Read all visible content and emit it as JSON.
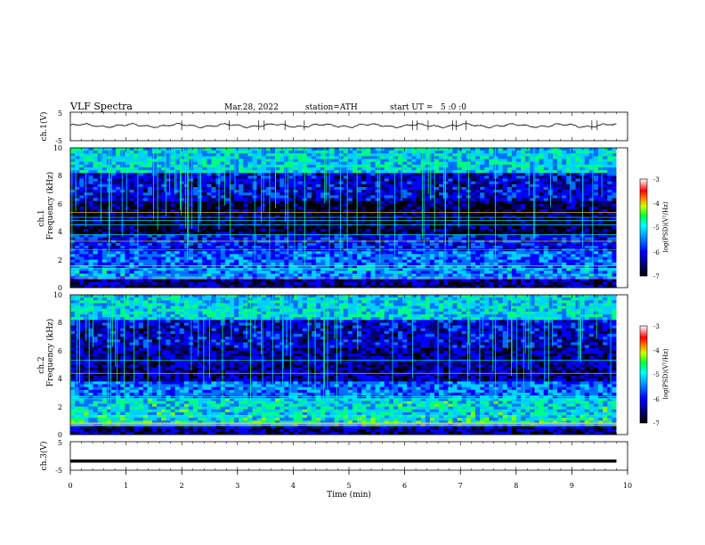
{
  "header": {
    "title": "VLF Spectra",
    "date": "Mar.28, 2022",
    "station": "station=ATH",
    "start_ut": "start UT =   5 :0 :0"
  },
  "chart_data": {
    "type": "heatmap",
    "xlabel": "Time (min)",
    "xlim": [
      0,
      10
    ],
    "x_ticks": [
      "0",
      "1",
      "2",
      "3",
      "4",
      "5",
      "6",
      "7",
      "8",
      "9",
      "10"
    ],
    "data_end_min": 9.8,
    "panels": [
      {
        "name": "ch1-waveform",
        "type": "line",
        "ylabel": "ch.1(V)",
        "ylim": [
          -5,
          5
        ],
        "y_ticks": [
          "5",
          "-5"
        ],
        "baseline_V": 0.3,
        "amplitude_V": 0.9
      },
      {
        "name": "ch1-spectrogram",
        "type": "heatmap",
        "ylabel_channel": "ch.1",
        "ylabel": "Frequency (kHz)",
        "ylim": [
          0,
          10
        ],
        "y_ticks": [
          "0",
          "2",
          "4",
          "6",
          "8",
          "10"
        ],
        "colorbar": {
          "label": "log(PSD)(V²/Hz)",
          "range": [
            -7,
            -3
          ],
          "ticks": [
            "-3",
            "-4",
            "-5",
            "-6",
            "-7"
          ]
        }
      },
      {
        "name": "ch2-spectrogram",
        "type": "heatmap",
        "ylabel_channel": "ch.2",
        "ylabel": "Frequency (kHz)",
        "ylim": [
          0,
          10
        ],
        "y_ticks": [
          "0",
          "2",
          "4",
          "6",
          "8",
          "10"
        ],
        "colorbar": {
          "label": "log(PSD)(V²/Hz)",
          "range": [
            -7,
            -3
          ],
          "ticks": [
            "-3",
            "-4",
            "-5",
            "-6",
            "-7"
          ]
        }
      },
      {
        "name": "ch3-waveform",
        "type": "line",
        "ylabel": "ch.3(V)",
        "ylim": [
          -5,
          5
        ],
        "y_ticks": [
          "5",
          "-5"
        ],
        "baseline_V": -1.8,
        "amplitude_V": 0.05
      }
    ],
    "colors": {
      "colormap": [
        "#ffffff",
        "#ff9a9a",
        "#ff0000",
        "#ffd000",
        "#00ff00",
        "#00ffff",
        "#0080ff",
        "#0000ff",
        "#000080",
        "#000000"
      ],
      "waveform": "#000000"
    }
  }
}
